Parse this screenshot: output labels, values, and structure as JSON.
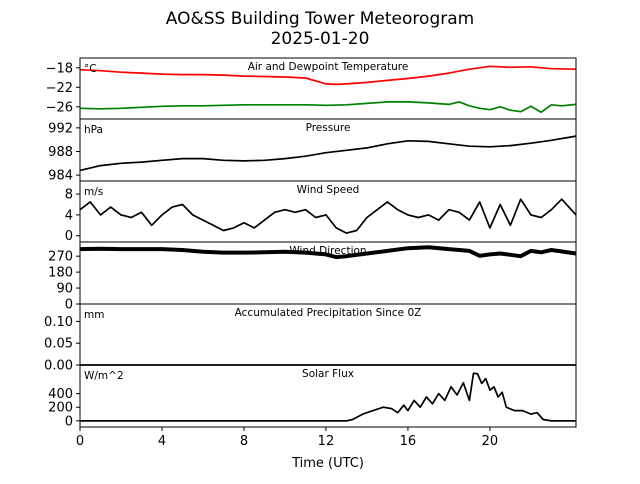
{
  "figure": {
    "title_line1": "AO&SS Building Tower Meteorogram",
    "title_line2": "2025-01-20",
    "xlabel": "Time (UTC)"
  },
  "x_axis": {
    "range": [
      0,
      24.2
    ],
    "ticks": [
      0,
      4,
      8,
      12,
      16,
      20
    ],
    "tick_labels": [
      "0",
      "4",
      "8",
      "12",
      "16",
      "20"
    ]
  },
  "chart_data": [
    {
      "type": "line",
      "title": "Air and Dewpoint Temperature",
      "unit": "°C",
      "ylim": [
        -28.5,
        -16.0
      ],
      "yticks": [
        -18,
        -22,
        -26
      ],
      "ytick_labels": [
        "−18",
        "−22",
        "−26"
      ],
      "series": [
        {
          "color": "#ff0000",
          "x": [
            0,
            1,
            2,
            3,
            4,
            5,
            6,
            7,
            8,
            9,
            10,
            11,
            11.5,
            12,
            12.5,
            13,
            14,
            15,
            16,
            17,
            18,
            19,
            19.5,
            20,
            21,
            22,
            23,
            24.2
          ],
          "y": [
            -18.4,
            -18.6,
            -18.9,
            -19.1,
            -19.3,
            -19.4,
            -19.4,
            -19.5,
            -19.7,
            -19.8,
            -19.9,
            -20.1,
            -20.7,
            -21.3,
            -21.4,
            -21.3,
            -21.0,
            -20.6,
            -20.2,
            -19.7,
            -19.1,
            -18.3,
            -18.0,
            -17.7,
            -17.9,
            -17.8,
            -18.2,
            -18.3
          ]
        },
        {
          "color": "#008000",
          "x": [
            0,
            1,
            2,
            3,
            4,
            5,
            6,
            7,
            8,
            9,
            10,
            11,
            12,
            13,
            14,
            15,
            16,
            17,
            18,
            18.5,
            19,
            19.5,
            20,
            20.5,
            21,
            21.5,
            22,
            22.5,
            23,
            23.5,
            24.2
          ],
          "y": [
            -26.3,
            -26.4,
            -26.3,
            -26.1,
            -25.9,
            -25.8,
            -25.8,
            -25.7,
            -25.6,
            -25.6,
            -25.6,
            -25.6,
            -25.7,
            -25.6,
            -25.3,
            -25.0,
            -25.0,
            -25.2,
            -25.5,
            -25.0,
            -25.8,
            -26.3,
            -26.6,
            -26.0,
            -26.7,
            -27.0,
            -25.9,
            -27.1,
            -25.6,
            -25.8,
            -25.5
          ]
        }
      ]
    },
    {
      "type": "line",
      "title": "Pressure",
      "unit": "hPa",
      "ylim": [
        983.0,
        993.5
      ],
      "yticks": [
        992,
        988,
        984
      ],
      "ytick_labels": [
        "992",
        "988",
        "984"
      ],
      "series": [
        {
          "color": "#000000",
          "x": [
            0,
            1,
            2,
            3,
            4,
            5,
            6,
            7,
            8,
            9,
            10,
            11,
            12,
            13,
            14,
            15,
            16,
            17,
            18,
            19,
            20,
            21,
            22,
            23,
            24.2
          ],
          "y": [
            984.8,
            985.6,
            986.0,
            986.2,
            986.5,
            986.8,
            986.8,
            986.5,
            986.4,
            986.5,
            986.8,
            987.2,
            987.8,
            988.2,
            988.6,
            989.3,
            989.8,
            989.7,
            989.3,
            988.9,
            988.8,
            989.0,
            989.4,
            989.9,
            990.6
          ]
        }
      ]
    },
    {
      "type": "line",
      "title": "Wind Speed",
      "unit": "m/s",
      "ylim": [
        -1.2,
        10.5
      ],
      "yticks": [
        8,
        4,
        0
      ],
      "ytick_labels": [
        "8",
        "4",
        "0"
      ],
      "series": [
        {
          "color": "#000000",
          "x": [
            0,
            0.5,
            1,
            1.5,
            2,
            2.5,
            3,
            3.5,
            4,
            4.5,
            5,
            5.5,
            6,
            6.5,
            7,
            7.5,
            8,
            8.5,
            9,
            9.5,
            10,
            10.5,
            11,
            11.5,
            12,
            12.5,
            13,
            13.5,
            14,
            14.5,
            15,
            15.5,
            16,
            16.5,
            17,
            17.5,
            18,
            18.5,
            19,
            19.5,
            20,
            20.5,
            21,
            21.5,
            22,
            22.5,
            23,
            23.5,
            24.2
          ],
          "y": [
            5,
            6.5,
            4,
            5.5,
            4,
            3.5,
            4.5,
            2,
            4,
            5.5,
            6,
            4,
            3,
            2,
            1,
            1.5,
            2.5,
            1.5,
            3,
            4.5,
            5,
            4.5,
            5,
            3.5,
            4,
            1.5,
            0.5,
            1,
            3.5,
            5,
            6.5,
            5,
            4,
            3.5,
            4,
            3,
            5,
            4.5,
            3,
            6.5,
            1.5,
            6,
            2,
            7,
            4,
            3.5,
            5,
            7,
            4
          ]
        }
      ]
    },
    {
      "type": "scatter",
      "title": "Wind Direction",
      "unit": "",
      "ylim": [
        0,
        350
      ],
      "yticks": [
        270,
        180,
        90,
        0
      ],
      "ytick_labels": [
        "270",
        "180",
        "90",
        "0"
      ],
      "series": [
        {
          "color": "#000000",
          "x": [
            0,
            1,
            2,
            3,
            4,
            5,
            6,
            7,
            8,
            9,
            10,
            11,
            12,
            12.5,
            13,
            14,
            15,
            16,
            17,
            18,
            19,
            19.5,
            20,
            20.5,
            21,
            21.5,
            22,
            22.5,
            23,
            24.2
          ],
          "y": [
            310,
            312,
            310,
            310,
            310,
            305,
            295,
            290,
            290,
            292,
            295,
            290,
            280,
            265,
            270,
            285,
            300,
            315,
            320,
            310,
            300,
            272,
            280,
            285,
            278,
            270,
            300,
            292,
            305,
            285
          ]
        }
      ]
    },
    {
      "type": "line",
      "title": "Accumulated Precipitation Since 0Z",
      "unit": "mm",
      "ylim": [
        0,
        0.14
      ],
      "yticks": [
        0.1,
        0.05,
        0.0
      ],
      "ytick_labels": [
        "0.10",
        "0.05",
        "0.00"
      ],
      "series": [
        {
          "color": "#000000",
          "x": [
            0,
            24.2
          ],
          "y": [
            0.0,
            0.0
          ]
        }
      ]
    },
    {
      "type": "line",
      "title": "Solar Flux",
      "unit": "W/m^2",
      "ylim": [
        -90,
        820
      ],
      "yticks": [
        400,
        200,
        0
      ],
      "ytick_labels": [
        "400",
        "200",
        "0"
      ],
      "series": [
        {
          "color": "#000000",
          "x": [
            0,
            13,
            13.3,
            13.8,
            14.3,
            14.8,
            15.2,
            15.5,
            15.8,
            16,
            16.3,
            16.6,
            16.9,
            17.2,
            17.5,
            17.8,
            18.1,
            18.4,
            18.7,
            19,
            19.2,
            19.4,
            19.6,
            19.8,
            20,
            20.2,
            20.4,
            20.6,
            20.8,
            21.2,
            21.6,
            22,
            22.3,
            22.6,
            23,
            24.2
          ],
          "y": [
            0,
            0,
            20,
            100,
            150,
            200,
            180,
            120,
            230,
            150,
            300,
            200,
            350,
            250,
            400,
            300,
            500,
            380,
            560,
            300,
            700,
            690,
            550,
            620,
            450,
            500,
            350,
            420,
            200,
            150,
            150,
            100,
            120,
            20,
            0,
            0
          ]
        }
      ]
    }
  ]
}
